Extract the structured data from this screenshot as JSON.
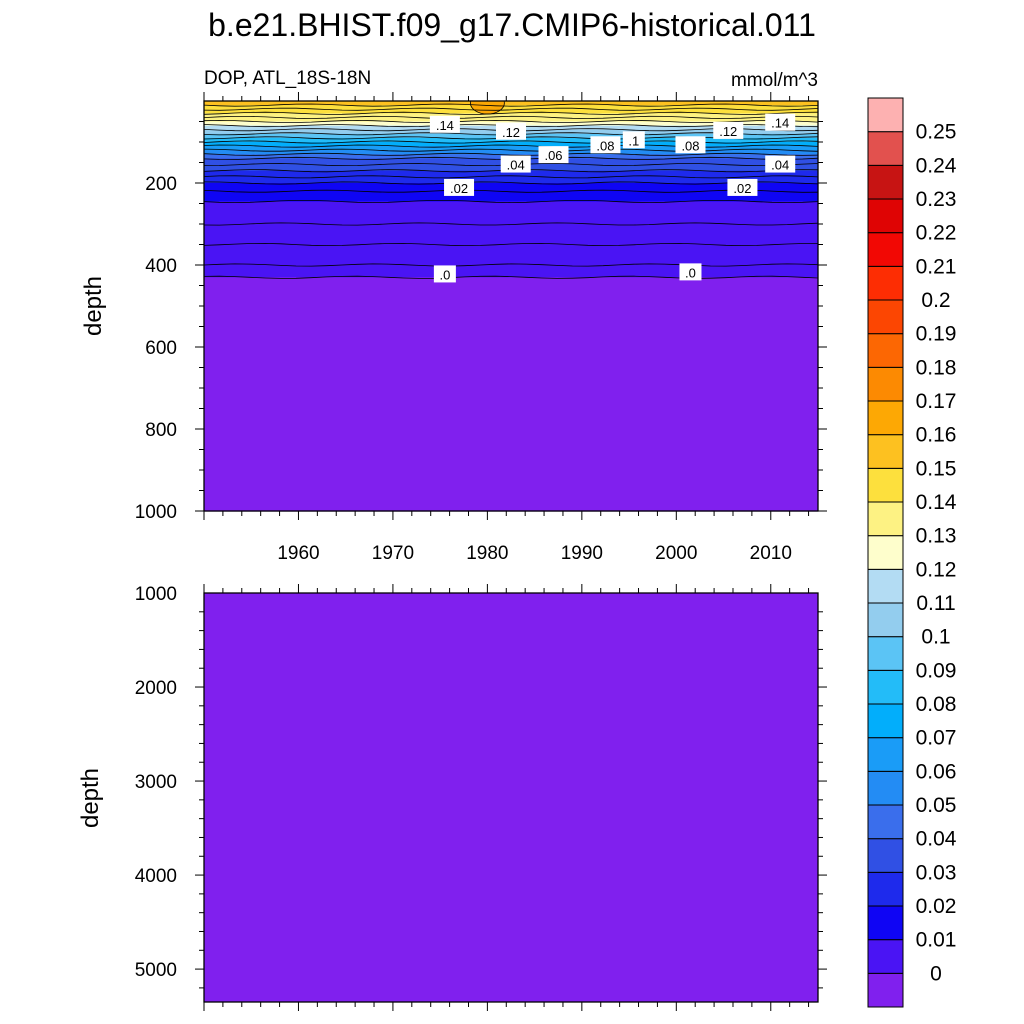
{
  "chart_data": {
    "type": "heatmap",
    "title": "b.e21.BHIST.f09_g17.CMIP6-historical.011",
    "subtitle_left": "DOP, ATL_18S-18N",
    "subtitle_right": "mmol/m^3",
    "panels": [
      {
        "name": "upper",
        "ylabel": "depth",
        "ylim": [
          0,
          1000
        ],
        "yticks": [
          "200",
          "400",
          "600",
          "800",
          "1000"
        ],
        "xlim": [
          1950,
          2015
        ],
        "xticks": [
          "1960",
          "1970",
          "1980",
          "1990",
          "2000",
          "2010"
        ],
        "layers": [
          {
            "depth": 10,
            "value": 0.155
          },
          {
            "depth": 20,
            "value": 0.145
          },
          {
            "depth": 30,
            "value": 0.145
          },
          {
            "depth": 40,
            "value": 0.14
          },
          {
            "depth": 50,
            "value": 0.135
          },
          {
            "depth": 60,
            "value": 0.125
          },
          {
            "depth": 70,
            "value": 0.115
          },
          {
            "depth": 80,
            "value": 0.105
          },
          {
            "depth": 90,
            "value": 0.095
          },
          {
            "depth": 100,
            "value": 0.085
          },
          {
            "depth": 110,
            "value": 0.075
          },
          {
            "depth": 120,
            "value": 0.065
          },
          {
            "depth": 130,
            "value": 0.055
          },
          {
            "depth": 140,
            "value": 0.045
          },
          {
            "depth": 155,
            "value": 0.04
          },
          {
            "depth": 170,
            "value": 0.035
          },
          {
            "depth": 185,
            "value": 0.03
          },
          {
            "depth": 200,
            "value": 0.025
          },
          {
            "depth": 220,
            "value": 0.02
          },
          {
            "depth": 245,
            "value": 0.015
          },
          {
            "depth": 300,
            "value": 0.01
          },
          {
            "depth": 350,
            "value": 0.008
          },
          {
            "depth": 400,
            "value": 0.004
          },
          {
            "depth": 430,
            "value": 0.001
          },
          {
            "depth": 1000,
            "value": 0
          }
        ],
        "contour_labels": [
          {
            "text": ".14",
            "year": 1975.5,
            "depth": 58
          },
          {
            "text": ".12",
            "year": 1982.5,
            "depth": 75
          },
          {
            "text": ".14",
            "year": 2011.0,
            "depth": 53
          },
          {
            "text": ".12",
            "year": 2005.5,
            "depth": 73
          },
          {
            "text": ".1",
            "year": 1995.5,
            "depth": 96
          },
          {
            "text": ".08",
            "year": 1992.5,
            "depth": 108
          },
          {
            "text": ".08",
            "year": 2001.5,
            "depth": 108
          },
          {
            "text": ".06",
            "year": 1987.0,
            "depth": 132
          },
          {
            "text": ".04",
            "year": 1983.0,
            "depth": 155
          },
          {
            "text": ".04",
            "year": 2011.0,
            "depth": 155
          },
          {
            "text": ".02",
            "year": 1977.0,
            "depth": 212
          },
          {
            "text": ".02",
            "year": 2007.0,
            "depth": 212
          },
          {
            "text": ".0",
            "year": 1975.5,
            "depth": 423
          },
          {
            "text": ".0",
            "year": 2001.5,
            "depth": 418
          }
        ]
      },
      {
        "name": "lower",
        "ylabel": "depth",
        "ylim": [
          1000,
          5350
        ],
        "yticks": [
          "1000",
          "2000",
          "3000",
          "4000",
          "5000"
        ],
        "xlim": [
          1950,
          2015
        ],
        "value": 0
      }
    ],
    "colorbar": {
      "levels": [
        "0",
        "0.01",
        "0.02",
        "0.03",
        "0.04",
        "0.05",
        "0.06",
        "0.07",
        "0.08",
        "0.09",
        "0.1",
        "0.11",
        "0.12",
        "0.13",
        "0.14",
        "0.15",
        "0.16",
        "0.17",
        "0.18",
        "0.19",
        "0.2",
        "0.21",
        "0.22",
        "0.23",
        "0.24",
        "0.25"
      ],
      "colors": [
        "#8020EE",
        "#4A14F4",
        "#0F05F4",
        "#1E2AEC",
        "#3050E4",
        "#3A6EEC",
        "#238CF4",
        "#1A9CF7",
        "#02AEFB",
        "#23BCF8",
        "#5BC4F5",
        "#93CDEE",
        "#B3DCF3",
        "#FEFECC",
        "#FDF283",
        "#FDE03D",
        "#FDC120",
        "#FDA804",
        "#FC8A02",
        "#FC6703",
        "#FC4602",
        "#FD2D03",
        "#F20804",
        "#DF0404",
        "#C71413",
        "#E2514E",
        "#FDB1B1"
      ]
    }
  }
}
